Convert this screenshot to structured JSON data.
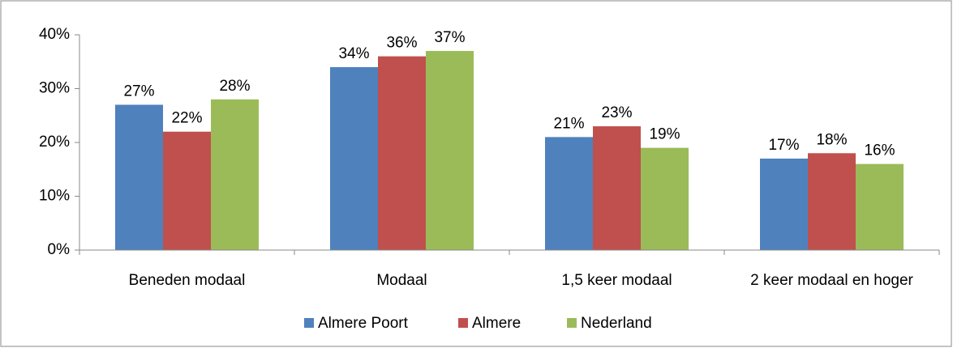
{
  "chart_data": {
    "type": "bar",
    "categories": [
      "Beneden modaal",
      "Modaal",
      "1,5 keer modaal",
      "2 keer modaal en hoger"
    ],
    "series": [
      {
        "name": "Almere Poort",
        "color": "#4f81bd",
        "values": [
          27,
          34,
          21,
          17
        ],
        "value_labels": [
          "27%",
          "34%",
          "21%",
          "17%"
        ]
      },
      {
        "name": "Almere",
        "color": "#c0504d",
        "values": [
          22,
          36,
          23,
          18
        ],
        "value_labels": [
          "22%",
          "36%",
          "23%",
          "18%"
        ]
      },
      {
        "name": "Nederland",
        "color": "#9bbb59",
        "values": [
          28,
          37,
          19,
          16
        ],
        "value_labels": [
          "28%",
          "37%",
          "19%",
          "16%"
        ]
      }
    ],
    "ylim": [
      0,
      40
    ],
    "yticks": [
      {
        "value": 0,
        "label": "0%"
      },
      {
        "value": 10,
        "label": "10%"
      },
      {
        "value": 20,
        "label": "20%"
      },
      {
        "value": 30,
        "label": "30%"
      },
      {
        "value": 40,
        "label": "40%"
      }
    ],
    "grid": false,
    "legend": "bottom"
  }
}
